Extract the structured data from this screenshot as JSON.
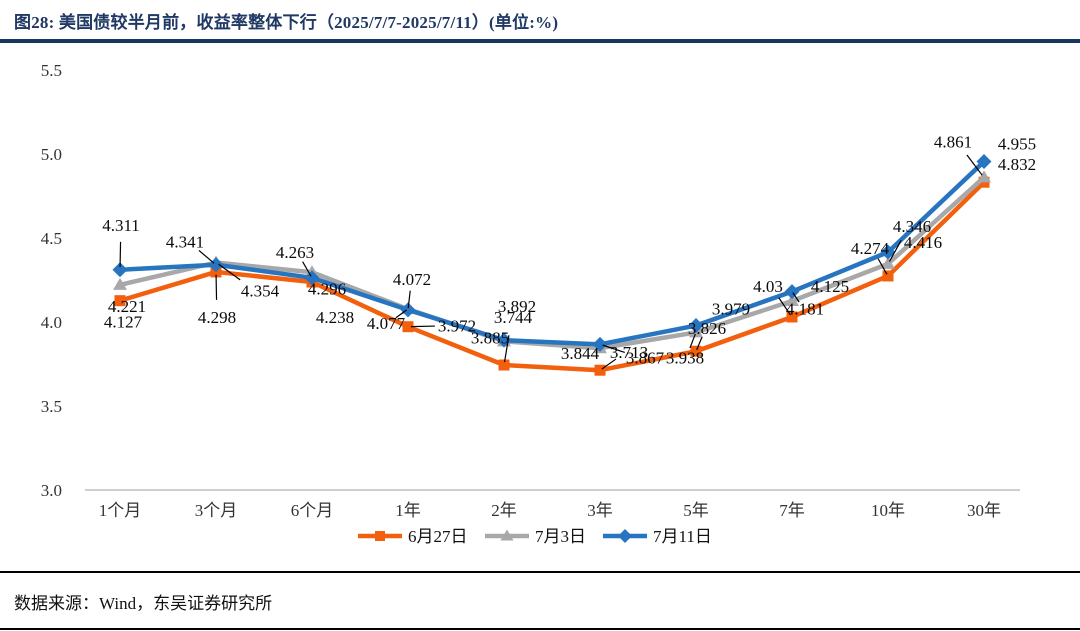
{
  "title": "图28: 美国债较半月前，收益率整体下行（2025/7/7-2025/7/11）(单位:%)",
  "source_note": "数据来源：Wind，东吴证券研究所",
  "chart_data": {
    "type": "line",
    "title": "美国债较半月前，收益率整体下行（2025/7/7-2025/7/11）",
    "unit": "%",
    "categories": [
      "1个月",
      "3个月",
      "6个月",
      "1年",
      "2年",
      "3年",
      "5年",
      "7年",
      "10年",
      "30年"
    ],
    "yticks": [
      "5.5",
      "5.0",
      "4.5",
      "4.0",
      "3.5",
      "3.0"
    ],
    "ylim": [
      3.0,
      5.5
    ],
    "grid": false,
    "legend_position": "bottom",
    "axis_line_color": "#BFBFBF",
    "label_color": "#0a0a0a",
    "series": [
      {
        "id": "jun27",
        "name": "6月27日",
        "color": "#F25F0D",
        "marker": "square",
        "values": [
          4.127,
          4.298,
          4.238,
          3.972,
          3.744,
          3.713,
          3.826,
          4.03,
          4.274,
          4.832
        ],
        "label_dx": [
          3,
          1,
          23,
          49,
          9,
          29,
          11,
          -24,
          -18,
          33
        ],
        "label_dy": [
          21,
          45,
          35,
          -1,
          -48,
          -18,
          -23,
          -31,
          -28,
          -18
        ],
        "label_leader": [
          false,
          true,
          false,
          true,
          true,
          true,
          true,
          true,
          true,
          false
        ]
      },
      {
        "id": "jul03",
        "name": "7月3日",
        "color": "#A8A8A8",
        "marker": "triangle",
        "values": [
          4.221,
          4.354,
          4.296,
          4.077,
          3.885,
          3.844,
          3.938,
          4.125,
          4.346,
          4.861
        ],
        "label_dx": [
          7,
          44,
          15,
          -22,
          -14,
          -20,
          -11,
          38,
          24,
          -31
        ],
        "label_dy": [
          21,
          28,
          16,
          14,
          -4,
          5,
          25,
          -15,
          -38,
          -36
        ],
        "label_leader": [
          false,
          true,
          false,
          true,
          false,
          false,
          true,
          false,
          true,
          true
        ]
      },
      {
        "id": "jul11",
        "name": "7月11日",
        "color": "#2774C1",
        "marker": "diamond",
        "values": [
          4.311,
          4.341,
          4.263,
          4.072,
          3.892,
          3.867,
          3.979,
          4.181,
          4.416,
          4.955
        ],
        "label_dx": [
          1,
          -31,
          -17,
          4,
          13,
          45,
          35,
          13,
          35,
          33
        ],
        "label_dy": [
          -45,
          -23,
          -26,
          -31,
          -34,
          13,
          -17,
          17,
          -10,
          -18
        ],
        "label_leader": [
          true,
          true,
          true,
          true,
          false,
          true,
          false,
          true,
          false,
          false
        ]
      }
    ]
  }
}
